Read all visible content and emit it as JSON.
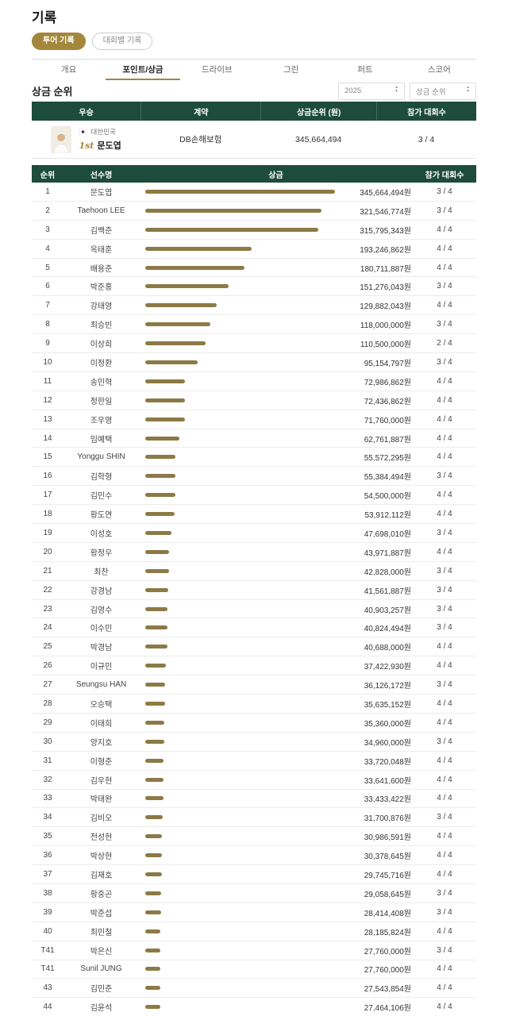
{
  "page": {
    "title": "기록"
  },
  "toggle": {
    "active_label": "투어 기록",
    "inactive_label": "대회별 기록"
  },
  "tabs": [
    {
      "label": "개요",
      "active": false
    },
    {
      "label": "포인트/상금",
      "active": true
    },
    {
      "label": "드라이브",
      "active": false
    },
    {
      "label": "그린",
      "active": false
    },
    {
      "label": "퍼트",
      "active": false
    },
    {
      "label": "스코어",
      "active": false
    }
  ],
  "section": {
    "title": "상금 순위",
    "year_select_value": "2025",
    "rank_select_value": "상금 순위"
  },
  "winner_table": {
    "headers": [
      "우승",
      "계약",
      "상금순위 (원)",
      "참가 대회수"
    ],
    "row": {
      "country": "대한민국",
      "ordinal": "1st",
      "name": "문도엽",
      "contract": "DB손해보험",
      "prize": "345,664,494",
      "events": "3 / 4"
    }
  },
  "colors": {
    "header_green": "#1d4b3c",
    "bar_gold": "#8c7a45",
    "accent_gold": "#a3873c"
  },
  "chart_data": {
    "type": "bar",
    "orientation": "horizontal",
    "title": "상금 순위",
    "columns": [
      "순위",
      "선수명",
      "상금",
      "참가 대회수"
    ],
    "value_unit": "원",
    "max_value": 345664494,
    "rows": [
      {
        "rank": "1",
        "name": "문도엽",
        "value": 345664494,
        "prize": "345,664,494원",
        "events": "3 / 4"
      },
      {
        "rank": "2",
        "name": "Taehoon LEE",
        "value": 321546774,
        "prize": "321,546,774원",
        "events": "3 / 4"
      },
      {
        "rank": "3",
        "name": "김백준",
        "value": 315795343,
        "prize": "315,795,343원",
        "events": "4 / 4"
      },
      {
        "rank": "4",
        "name": "옥태훈",
        "value": 193246862,
        "prize": "193,246,862원",
        "events": "4 / 4"
      },
      {
        "rank": "5",
        "name": "배용준",
        "value": 180711887,
        "prize": "180,711,887원",
        "events": "4 / 4"
      },
      {
        "rank": "6",
        "name": "박준홍",
        "value": 151276043,
        "prize": "151,276,043원",
        "events": "3 / 4"
      },
      {
        "rank": "7",
        "name": "강태영",
        "value": 129882043,
        "prize": "129,882,043원",
        "events": "4 / 4"
      },
      {
        "rank": "8",
        "name": "최승빈",
        "value": 118000000,
        "prize": "118,000,000원",
        "events": "3 / 4"
      },
      {
        "rank": "9",
        "name": "이상희",
        "value": 110500000,
        "prize": "110,500,000원",
        "events": "2 / 4"
      },
      {
        "rank": "10",
        "name": "이정환",
        "value": 95154797,
        "prize": "95,154,797원",
        "events": "3 / 4"
      },
      {
        "rank": "11",
        "name": "송민혁",
        "value": 72986862,
        "prize": "72,986,862원",
        "events": "4 / 4"
      },
      {
        "rank": "12",
        "name": "정한일",
        "value": 72436862,
        "prize": "72,436,862원",
        "events": "4 / 4"
      },
      {
        "rank": "13",
        "name": "조우영",
        "value": 71760000,
        "prize": "71,760,000원",
        "events": "4 / 4"
      },
      {
        "rank": "14",
        "name": "임예택",
        "value": 62761887,
        "prize": "62,761,887원",
        "events": "4 / 4"
      },
      {
        "rank": "15",
        "name": "Yonggu SHIN",
        "value": 55572295,
        "prize": "55,572,295원",
        "events": "4 / 4"
      },
      {
        "rank": "16",
        "name": "김학형",
        "value": 55384494,
        "prize": "55,384,494원",
        "events": "3 / 4"
      },
      {
        "rank": "17",
        "name": "김민수",
        "value": 54500000,
        "prize": "54,500,000원",
        "events": "4 / 4"
      },
      {
        "rank": "18",
        "name": "황도연",
        "value": 53912112,
        "prize": "53,912,112원",
        "events": "4 / 4"
      },
      {
        "rank": "19",
        "name": "이성호",
        "value": 47698010,
        "prize": "47,698,010원",
        "events": "3 / 4"
      },
      {
        "rank": "20",
        "name": "황정우",
        "value": 43971887,
        "prize": "43,971,887원",
        "events": "4 / 4"
      },
      {
        "rank": "21",
        "name": "최찬",
        "value": 42828000,
        "prize": "42,828,000원",
        "events": "3 / 4"
      },
      {
        "rank": "22",
        "name": "강경남",
        "value": 41561887,
        "prize": "41,561,887원",
        "events": "3 / 4"
      },
      {
        "rank": "23",
        "name": "김영수",
        "value": 40903257,
        "prize": "40,903,257원",
        "events": "3 / 4"
      },
      {
        "rank": "24",
        "name": "이수민",
        "value": 40824494,
        "prize": "40,824,494원",
        "events": "3 / 4"
      },
      {
        "rank": "25",
        "name": "박경남",
        "value": 40688000,
        "prize": "40,688,000원",
        "events": "4 / 4"
      },
      {
        "rank": "26",
        "name": "이규민",
        "value": 37422930,
        "prize": "37,422,930원",
        "events": "4 / 4"
      },
      {
        "rank": "27",
        "name": "Seungsu HAN",
        "value": 36126172,
        "prize": "36,126,172원",
        "events": "3 / 4"
      },
      {
        "rank": "28",
        "name": "오승택",
        "value": 35635152,
        "prize": "35,635,152원",
        "events": "4 / 4"
      },
      {
        "rank": "29",
        "name": "이태희",
        "value": 35360000,
        "prize": "35,360,000원",
        "events": "4 / 4"
      },
      {
        "rank": "30",
        "name": "양지호",
        "value": 34960000,
        "prize": "34,960,000원",
        "events": "3 / 4"
      },
      {
        "rank": "31",
        "name": "이형준",
        "value": 33720048,
        "prize": "33,720,048원",
        "events": "4 / 4"
      },
      {
        "rank": "32",
        "name": "김우현",
        "value": 33641600,
        "prize": "33,641,600원",
        "events": "4 / 4"
      },
      {
        "rank": "33",
        "name": "박태완",
        "value": 33433422,
        "prize": "33,433,422원",
        "events": "4 / 4"
      },
      {
        "rank": "34",
        "name": "김비오",
        "value": 31700876,
        "prize": "31,700,876원",
        "events": "3 / 4"
      },
      {
        "rank": "35",
        "name": "전성현",
        "value": 30986591,
        "prize": "30,986,591원",
        "events": "4 / 4"
      },
      {
        "rank": "36",
        "name": "박상현",
        "value": 30378645,
        "prize": "30,378,645원",
        "events": "4 / 4"
      },
      {
        "rank": "37",
        "name": "김재호",
        "value": 29745716,
        "prize": "29,745,716원",
        "events": "4 / 4"
      },
      {
        "rank": "38",
        "name": "황중곤",
        "value": 29058645,
        "prize": "29,058,645원",
        "events": "3 / 4"
      },
      {
        "rank": "39",
        "name": "박준섭",
        "value": 28414408,
        "prize": "28,414,408원",
        "events": "3 / 4"
      },
      {
        "rank": "40",
        "name": "최민철",
        "value": 28185824,
        "prize": "28,185,824원",
        "events": "4 / 4"
      },
      {
        "rank": "T41",
        "name": "박은신",
        "value": 27760000,
        "prize": "27,760,000원",
        "events": "3 / 4"
      },
      {
        "rank": "T41",
        "name": "Sunil JUNG",
        "value": 27760000,
        "prize": "27,760,000원",
        "events": "4 / 4"
      },
      {
        "rank": "43",
        "name": "김민준",
        "value": 27543854,
        "prize": "27,543,854원",
        "events": "4 / 4"
      },
      {
        "rank": "44",
        "name": "김윤석",
        "value": 27464106,
        "prize": "27,464,106원",
        "events": "4 / 4"
      }
    ]
  }
}
